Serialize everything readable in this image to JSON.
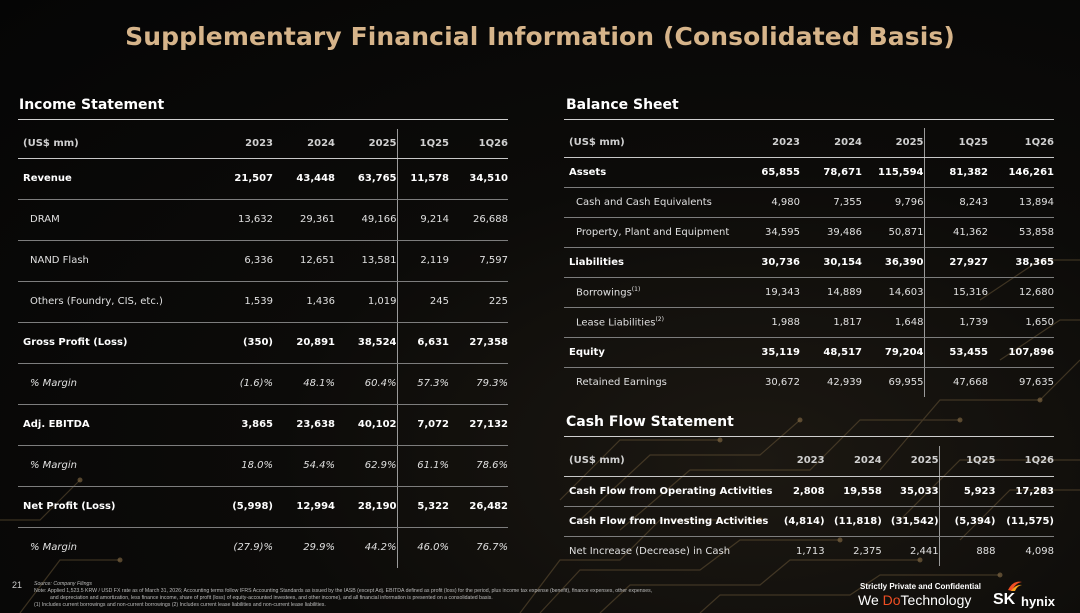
{
  "title": "Supplementary Financial Information (Consolidated Basis)",
  "columns": [
    "(US$ mm)",
    "2023",
    "2024",
    "2025",
    "1Q25",
    "1Q26"
  ],
  "income_statement": {
    "title": "Income Statement",
    "rows": [
      {
        "label": "Revenue",
        "v1": "21,507",
        "v2": "43,448",
        "v3": "63,765",
        "v4": "11,578",
        "v5": "34,510"
      },
      {
        "label": "DRAM",
        "v1": "13,632",
        "v2": "29,361",
        "v3": "49,166",
        "v4": "9,214",
        "v5": "26,688"
      },
      {
        "label": "NAND Flash",
        "v1": "6,336",
        "v2": "12,651",
        "v3": "13,581",
        "v4": "2,119",
        "v5": "7,597"
      },
      {
        "label": "Others (Foundry, CIS, etc.)",
        "v1": "1,539",
        "v2": "1,436",
        "v3": "1,019",
        "v4": "245",
        "v5": "225"
      },
      {
        "label": "Gross Profit (Loss)",
        "v1": "(350)",
        "v2": "20,891",
        "v3": "38,524",
        "v4": "6,631",
        "v5": "27,358"
      },
      {
        "label": "% Margin",
        "v1": "(1.6)%",
        "v2": "48.1%",
        "v3": "60.4%",
        "v4": "57.3%",
        "v5": "79.3%"
      },
      {
        "label": "Adj. EBITDA",
        "v1": "3,865",
        "v2": "23,638",
        "v3": "40,102",
        "v4": "7,072",
        "v5": "27,132"
      },
      {
        "label": "% Margin",
        "v1": "18.0%",
        "v2": "54.4%",
        "v3": "62.9%",
        "v4": "61.1%",
        "v5": "78.6%"
      },
      {
        "label": "Net Profit (Loss)",
        "v1": "(5,998)",
        "v2": "12,994",
        "v3": "28,190",
        "v4": "5,322",
        "v5": "26,482"
      },
      {
        "label": "% Margin",
        "v1": "(27.9)%",
        "v2": "29.9%",
        "v3": "44.2%",
        "v4": "46.0%",
        "v5": "76.7%"
      }
    ]
  },
  "balance_sheet": {
    "title": "Balance Sheet",
    "rows": [
      {
        "label": "Assets",
        "v1": "65,855",
        "v2": "78,671",
        "v3": "115,594",
        "v4": "81,382",
        "v5": "146,261"
      },
      {
        "label": "Cash and Cash Equivalents",
        "v1": "4,980",
        "v2": "7,355",
        "v3": "9,796",
        "v4": "8,243",
        "v5": "13,894"
      },
      {
        "label": "Property, Plant and Equipment",
        "v1": "34,595",
        "v2": "39,486",
        "v3": "50,871",
        "v4": "41,362",
        "v5": "53,858"
      },
      {
        "label": "Liabilities",
        "v1": "30,736",
        "v2": "30,154",
        "v3": "36,390",
        "v4": "27,927",
        "v5": "38,365"
      },
      {
        "label": "Borrowings",
        "sup": "(1)",
        "v1": "19,343",
        "v2": "14,889",
        "v3": "14,603",
        "v4": "15,316",
        "v5": "12,680"
      },
      {
        "label": "Lease Liabilities",
        "sup": "(2)",
        "v1": "1,988",
        "v2": "1,817",
        "v3": "1,648",
        "v4": "1,739",
        "v5": "1,650"
      },
      {
        "label": "Equity",
        "v1": "35,119",
        "v2": "48,517",
        "v3": "79,204",
        "v4": "53,455",
        "v5": "107,896"
      },
      {
        "label": "Retained Earnings",
        "v1": "30,672",
        "v2": "42,939",
        "v3": "69,955",
        "v4": "47,668",
        "v5": "97,635"
      }
    ]
  },
  "cash_flow": {
    "title": "Cash Flow Statement",
    "rows": [
      {
        "label": "Cash Flow from Operating Activities",
        "v1": "2,808",
        "v2": "19,558",
        "v3": "35,033",
        "v4": "5,923",
        "v5": "17,283"
      },
      {
        "label": "Cash Flow from Investing Activities",
        "v1": "(4,814)",
        "v2": "(11,818)",
        "v3": "(31,542)",
        "v4": "(5,394)",
        "v5": "(11,575)"
      },
      {
        "label": "Net Increase (Decrease) in Cash",
        "v1": "1,713",
        "v2": "2,375",
        "v3": "2,441",
        "v4": "888",
        "v5": "4,098"
      }
    ]
  },
  "footer": {
    "page_number": "21",
    "source": "Source: Company Filings",
    "note1": "Note: Applied 1,523.5 KRW / USD FX rate as of March 31, 2026; Accounting terms follow IFRS Accounting Standards as issued by the IASB (except Adj. EBITDA defined as profit (loss) for the period, plus income tax expense (benefit), finance expenses, other expenses,",
    "note2": "and depreciation and amortization, less finance income, share of profit (loss) of equity-accounted investees, and other income), and all financial information is presented on a consolidated basis.",
    "note3": "(1)      Includes current borrowings and non-current borrowings                    (2)      Includes current lease liabilities and non-current lease liabilities.",
    "confidential": "Strictly Private and Confidential",
    "slogan_we": "We",
    "slogan_do": "Do",
    "slogan_tech": "Technology",
    "logo_sk": "SK",
    "logo_hynix": "hynix"
  }
}
